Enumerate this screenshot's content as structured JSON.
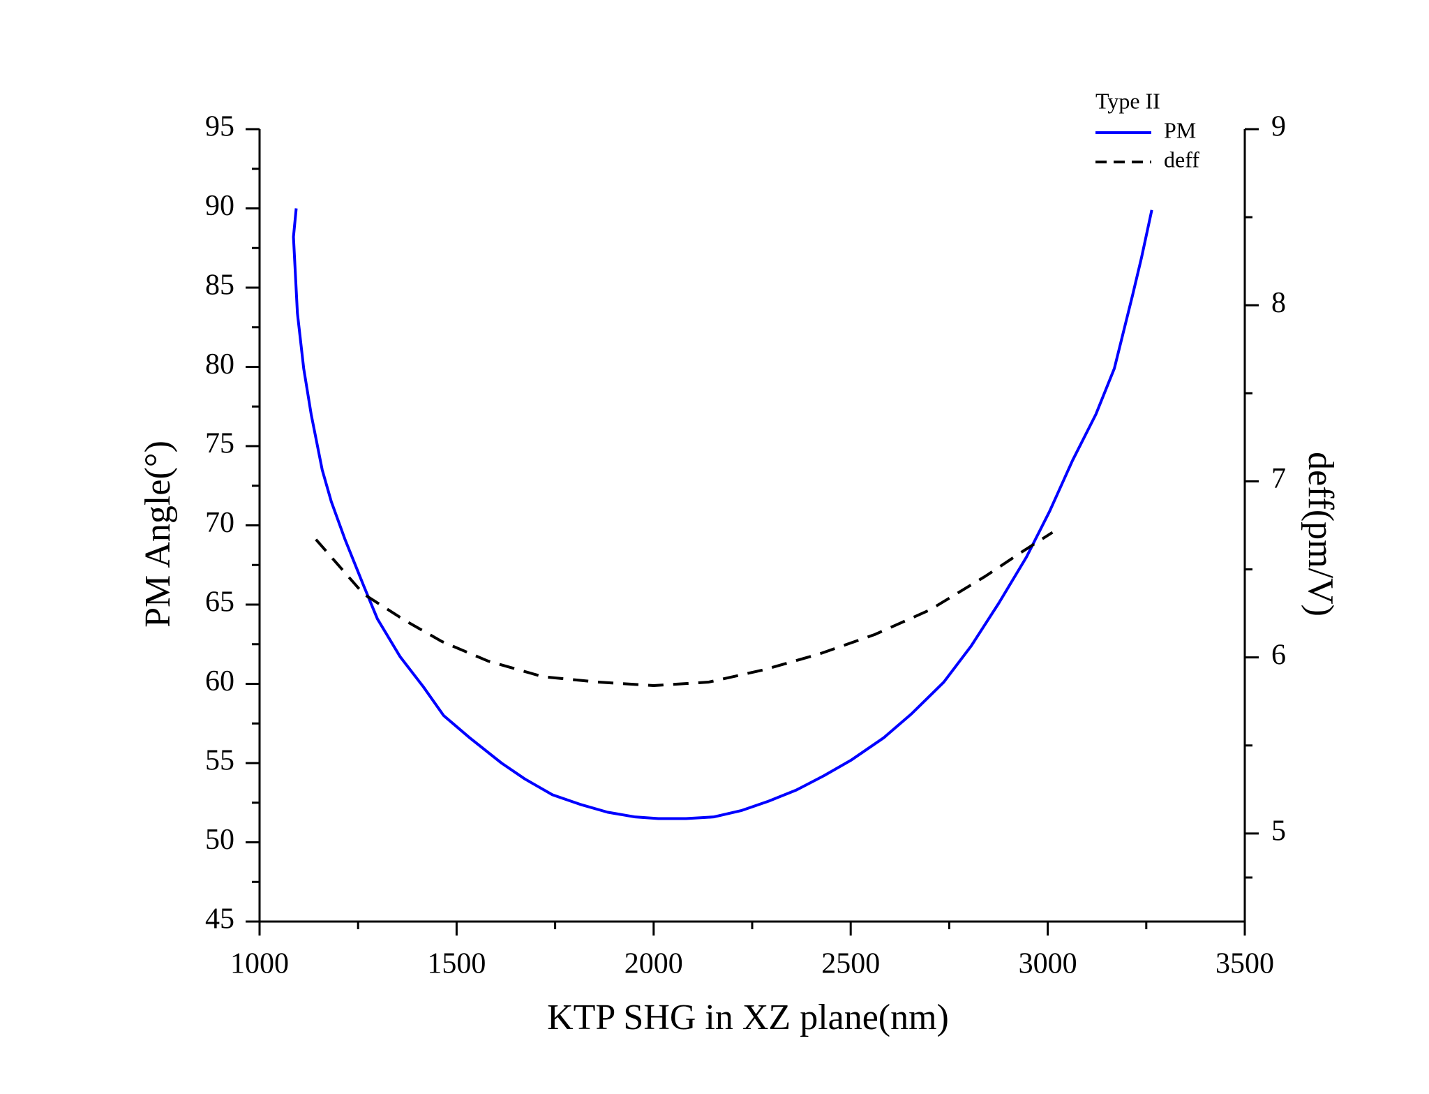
{
  "chart_data": {
    "type": "line",
    "xlabel": "KTP SHG in XZ plane(nm)",
    "ylabel": "PM Angle(°)",
    "y2label": "deff(pm/V)",
    "xlim": [
      1000,
      3500
    ],
    "xticks": [
      1000,
      1500,
      2000,
      2500,
      3000,
      3500
    ],
    "ylim": [
      45,
      95
    ],
    "yticks": [
      45,
      50,
      55,
      60,
      65,
      70,
      75,
      80,
      85,
      90,
      95
    ],
    "y2lim": [
      4.5,
      9
    ],
    "y2ticks": [
      5,
      6,
      7,
      8,
      9
    ],
    "legend_title": "Type II",
    "legend": "upper right",
    "series": [
      {
        "name": "PM",
        "color": "#0000ff",
        "style": "solid",
        "x": [
          1093,
          1086,
          1096,
          1112,
          1131,
          1159,
          1182,
          1217,
          1264,
          1299,
          1357,
          1416,
          1467,
          1533,
          1614,
          1673,
          1743,
          1813,
          1883,
          1953,
          2012,
          2082,
          2152,
          2222,
          2292,
          2362,
          2432,
          2502,
          2584,
          2654,
          2736,
          2806,
          2876,
          2946,
          3005,
          3063,
          3122,
          3169,
          3215,
          3238,
          3264
        ],
        "values": [
          90,
          88.2,
          83.4,
          79.9,
          77.0,
          73.5,
          71.5,
          69.1,
          66.2,
          64.1,
          61.7,
          59.8,
          58.0,
          56.6,
          55.0,
          54.0,
          53.0,
          52.4,
          51.9,
          51.6,
          51.5,
          51.5,
          51.6,
          52.0,
          52.6,
          53.3,
          54.2,
          55.2,
          56.6,
          58.1,
          60.1,
          62.4,
          65.1,
          68.0,
          70.9,
          74.1,
          77.0,
          79.9,
          84.5,
          86.9,
          89.9
        ]
      },
      {
        "name": "deff",
        "color": "#000000",
        "style": "dashed",
        "axis": "y2",
        "x": [
          1143,
          1264,
          1369,
          1463,
          1579,
          1720,
          1860,
          2000,
          2140,
          2280,
          2421,
          2561,
          2701,
          2841,
          2935,
          3012
        ],
        "values": [
          6.67,
          6.36,
          6.21,
          6.09,
          5.98,
          5.89,
          5.86,
          5.84,
          5.86,
          5.93,
          6.02,
          6.13,
          6.27,
          6.46,
          6.6,
          6.71
        ]
      }
    ]
  }
}
